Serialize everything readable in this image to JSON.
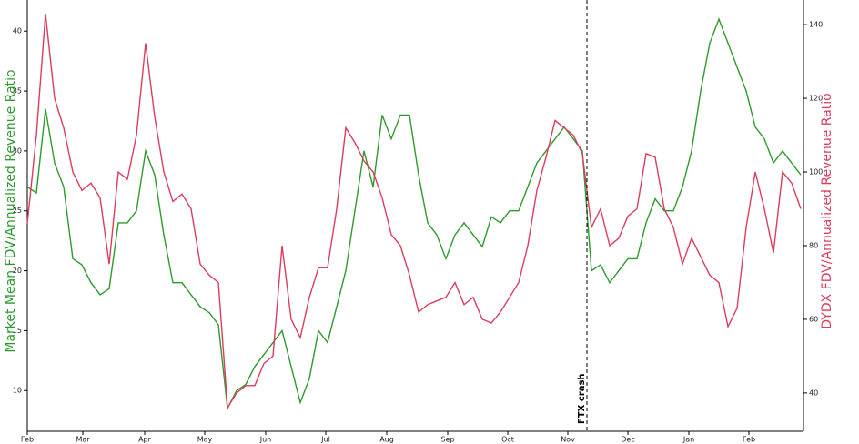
{
  "chart_data": {
    "type": "line",
    "ylabel": "Market Mean FDV/Annualized Revenue Ratio",
    "y2label": "DYDX FDV/Annualized Revenue Ratio",
    "xlim": [
      0,
      85.3
    ],
    "xticks": [
      {
        "value": 0,
        "label": "Feb"
      },
      {
        "value": 6.1,
        "label": "Mar"
      },
      {
        "value": 12.9,
        "label": "Apr"
      },
      {
        "value": 19.5,
        "label": "May"
      },
      {
        "value": 26.2,
        "label": "Jun"
      },
      {
        "value": 32.8,
        "label": "Jul"
      },
      {
        "value": 39.5,
        "label": "Aug"
      },
      {
        "value": 46.2,
        "label": "Sep"
      },
      {
        "value": 52.8,
        "label": "Oct"
      },
      {
        "value": 59.4,
        "label": "Nov"
      },
      {
        "value": 66,
        "label": "Dec"
      },
      {
        "value": 72.7,
        "label": "Jan"
      },
      {
        "value": 79.3,
        "label": "Feb"
      }
    ],
    "ylim": [
      6.6,
      42.6
    ],
    "yticks": [
      10,
      15,
      20,
      25,
      30,
      35,
      40
    ],
    "y2lim": [
      29.6,
      146.7
    ],
    "y2ticks": [
      40,
      60,
      80,
      100,
      120,
      140
    ],
    "vline": {
      "x": 61.5,
      "label": "FTX crash"
    },
    "series": [
      {
        "name": "Market Mean FDV/Annualized Revenue Ratio",
        "color": "#2e9a2e",
        "values": [
          27,
          26.5,
          33.5,
          29,
          27,
          21,
          20.5,
          19,
          18,
          18.5,
          24,
          24,
          25,
          30,
          28,
          23,
          19,
          19,
          18,
          17,
          16.5,
          15.5,
          8.5,
          10,
          10.5,
          12,
          13,
          14,
          15,
          12,
          9,
          11,
          15,
          14,
          17,
          20,
          25,
          30,
          27,
          33,
          31,
          33,
          33,
          28,
          24,
          23,
          21,
          23,
          24,
          23,
          22,
          24.5,
          24,
          25,
          25,
          27,
          29,
          30,
          31,
          32,
          31,
          30,
          20,
          20.5,
          19,
          20,
          21,
          21,
          24,
          26,
          25,
          25,
          27,
          30,
          35,
          39,
          41,
          39,
          37,
          35,
          32,
          31,
          29,
          30,
          29,
          28
        ]
      },
      {
        "name": "DYDX FDV/Annualized Revenue Ratio",
        "color": "#dc3c5e",
        "axis": "y2",
        "values": [
          86,
          110,
          143,
          120,
          112,
          100,
          95,
          97,
          93,
          75,
          100,
          98,
          110,
          135,
          115,
          100,
          92,
          94,
          90,
          75,
          72,
          70,
          36,
          40,
          42,
          42,
          48,
          50,
          80,
          60,
          55,
          66,
          74,
          74,
          90,
          112,
          108,
          103,
          100,
          93,
          83,
          80,
          72,
          62,
          64,
          65,
          66,
          70,
          64,
          66,
          60,
          59,
          62,
          66,
          70,
          80,
          95,
          104,
          114,
          112,
          110,
          105,
          85,
          90,
          80,
          82,
          88,
          90,
          105,
          104,
          90,
          85,
          75,
          82,
          77,
          72,
          70,
          58,
          63,
          85,
          100,
          90,
          78,
          100,
          97,
          90
        ]
      }
    ]
  }
}
